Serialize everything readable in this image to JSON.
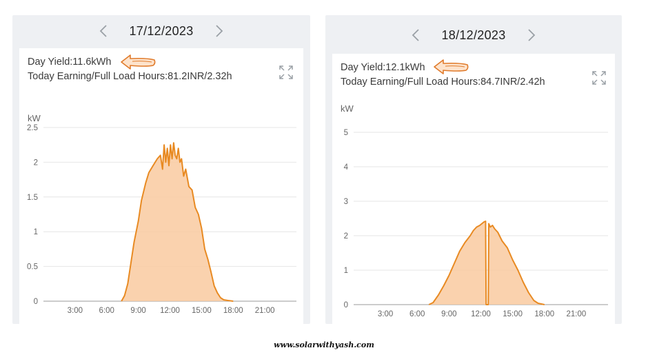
{
  "left": {
    "date": "17/12/2023",
    "day_yield": "Day Yield:11.6kWh",
    "earning": "Today Earning/Full Load Hours:81.2INR/2.32h",
    "unit": "kW"
  },
  "right": {
    "date": "18/12/2023",
    "day_yield": "Day Yield:12.1kWh",
    "earning": "Today Earning/Full Load Hours:84.7INR/2.42h",
    "unit": "kW"
  },
  "icons": {
    "prev": "chevron-left-icon",
    "next": "chevron-right-icon",
    "expand": "expand-icon",
    "arrow": "arrow-left-icon"
  },
  "colors": {
    "line": "#e88a22",
    "fill": "#f9caa0",
    "grid": "#e6e6e6",
    "arrow": "#e07a2a"
  },
  "footer": "www.solarwithyash.com",
  "chart_data": [
    {
      "type": "area",
      "title": "",
      "ylabel": "kW",
      "x_ticks": [
        "3:00",
        "6:00",
        "9:00",
        "12:00",
        "15:00",
        "18:00",
        "21:00"
      ],
      "y_ticks": [
        "0",
        "0.5",
        "1",
        "1.5",
        "2",
        "2.5"
      ],
      "xlim": [
        0,
        24
      ],
      "ylim": [
        0,
        2.5
      ],
      "grid": true,
      "series": [
        {
          "x": [
            7.4,
            7.7,
            8.0,
            8.3,
            8.6,
            9.0,
            9.3,
            9.7,
            10.0,
            10.4,
            10.8,
            11.1,
            11.3,
            11.45,
            11.6,
            11.75,
            11.9,
            12.05,
            12.2,
            12.35,
            12.5,
            12.65,
            12.8,
            12.95,
            13.1,
            13.3,
            13.5,
            13.8,
            14.1,
            14.4,
            14.7,
            15.0,
            15.3,
            15.6,
            15.9,
            16.2,
            16.5,
            16.8,
            17.1,
            17.5,
            18.0
          ],
          "y": [
            0.0,
            0.08,
            0.25,
            0.55,
            0.85,
            1.15,
            1.45,
            1.7,
            1.85,
            1.95,
            2.05,
            2.1,
            1.9,
            2.25,
            2.0,
            2.2,
            1.95,
            2.25,
            2.05,
            2.28,
            2.1,
            2.05,
            2.2,
            2.0,
            2.05,
            1.8,
            1.9,
            1.65,
            1.6,
            1.35,
            1.25,
            1.05,
            0.75,
            0.6,
            0.42,
            0.22,
            0.12,
            0.05,
            0.02,
            0.01,
            0.0
          ]
        }
      ]
    },
    {
      "type": "area",
      "title": "",
      "ylabel": "kW",
      "x_ticks": [
        "3:00",
        "6:00",
        "9:00",
        "12:00",
        "15:00",
        "18:00",
        "21:00"
      ],
      "y_ticks": [
        "0",
        "1",
        "2",
        "3",
        "4",
        "5"
      ],
      "xlim": [
        0,
        24
      ],
      "ylim": [
        0,
        5
      ],
      "grid": true,
      "series": [
        {
          "x": [
            7.1,
            7.5,
            8.0,
            8.5,
            9.0,
            9.5,
            10.0,
            10.5,
            11.0,
            11.3,
            11.6,
            11.9,
            12.1,
            12.3,
            12.45,
            12.5,
            12.7,
            12.75,
            12.9,
            13.1,
            13.3,
            13.6,
            14.0,
            14.5,
            15.0,
            15.5,
            16.0,
            16.5,
            17.0,
            17.4,
            17.7,
            18.0
          ],
          "y": [
            0.0,
            0.06,
            0.28,
            0.55,
            0.85,
            1.2,
            1.55,
            1.8,
            2.0,
            2.15,
            2.25,
            2.3,
            2.35,
            2.4,
            2.42,
            0.0,
            0.0,
            2.35,
            2.25,
            2.3,
            2.2,
            2.1,
            1.85,
            1.65,
            1.3,
            1.0,
            0.65,
            0.35,
            0.12,
            0.04,
            0.02,
            0.0
          ]
        }
      ]
    }
  ]
}
